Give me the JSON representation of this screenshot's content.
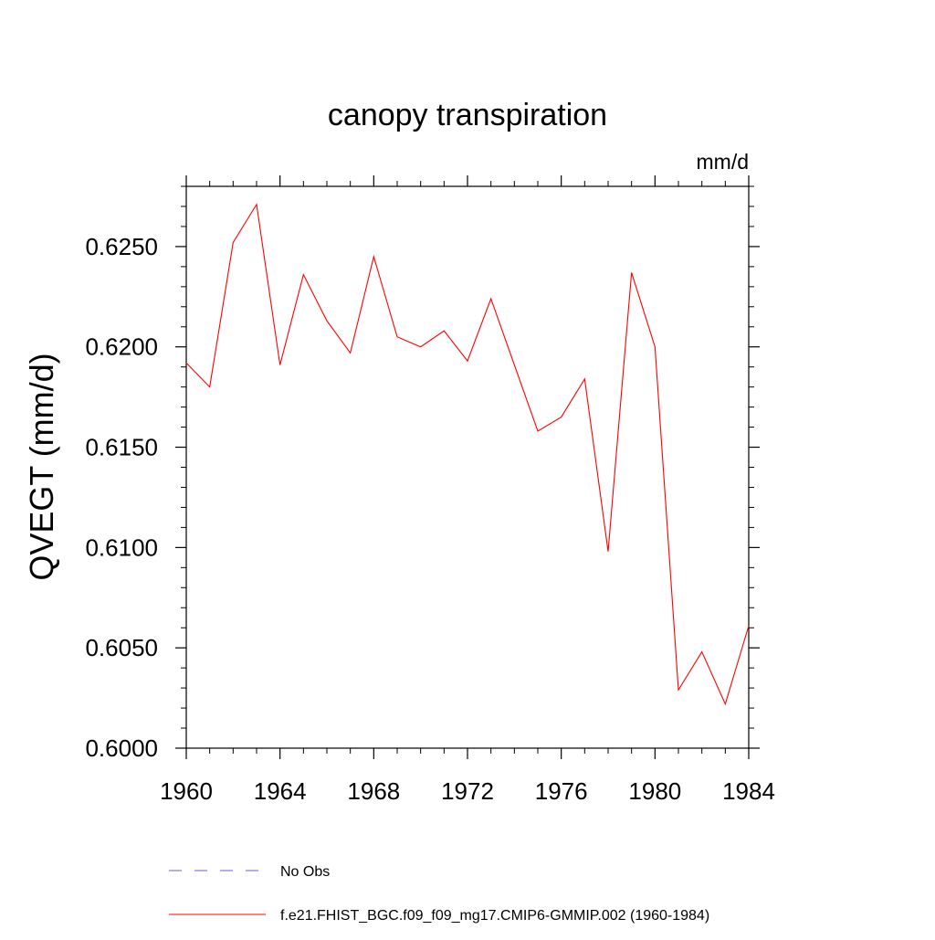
{
  "chart_data": {
    "type": "line",
    "title": "canopy transpiration",
    "units_label": "mm/d",
    "ylabel": "QVEGT  (mm/d)",
    "xlabel": "",
    "xlim": [
      1960,
      1984
    ],
    "ylim": [
      0.6,
      0.628
    ],
    "x_ticks": [
      "1960",
      "1964",
      "1968",
      "1972",
      "1976",
      "1980",
      "1984"
    ],
    "y_ticks": [
      "0.6000",
      "0.6050",
      "0.6100",
      "0.6150",
      "0.6200",
      "0.6250"
    ],
    "grid": false,
    "legend_position": "bottom",
    "series": [
      {
        "name": "f.e21.FHIST_BGC.f09_f09_mg17.CMIP6-GMMIP.002 (1960-1984)",
        "color": "#ff0000",
        "style": "solid",
        "x": [
          1960,
          1961,
          1962,
          1963,
          1964,
          1965,
          1966,
          1967,
          1968,
          1969,
          1970,
          1971,
          1972,
          1973,
          1974,
          1975,
          1976,
          1977,
          1978,
          1979,
          1980,
          1981,
          1982,
          1983,
          1984
        ],
        "y": [
          0.6192,
          0.618,
          0.6252,
          0.6271,
          0.6191,
          0.6236,
          0.6213,
          0.6197,
          0.6245,
          0.6205,
          0.62,
          0.6208,
          0.6193,
          0.6224,
          0.6191,
          0.6158,
          0.6165,
          0.6184,
          0.6098,
          0.6237,
          0.62,
          0.6029,
          0.6048,
          0.6022,
          0.6061
        ]
      }
    ],
    "legend": [
      {
        "label": "No Obs",
        "color": "#6a5acd",
        "style": "dashed"
      },
      {
        "label": "f.e21.FHIST_BGC.f09_f09_mg17.CMIP6-GMMIP.002 (1960-1984)",
        "color": "#ff0000",
        "style": "solid"
      }
    ]
  }
}
